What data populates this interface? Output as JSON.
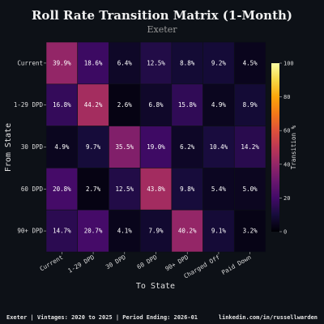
{
  "chart_data": {
    "type": "heatmap",
    "title": "Roll Rate Transition Matrix (1-Month)",
    "subtitle": "Exeter",
    "xlabel": "To State",
    "ylabel": "From State",
    "x_categories": [
      "Current",
      "1-29 DPD",
      "30 DPD",
      "60 DPD",
      "90+ DPD",
      "Charged Off",
      "Paid Down"
    ],
    "y_categories": [
      "Current",
      "1-29 DPD",
      "30 DPD",
      "60 DPD",
      "90+ DPD"
    ],
    "values": [
      [
        39.9,
        18.6,
        6.4,
        12.5,
        8.8,
        9.2,
        4.5
      ],
      [
        16.8,
        44.2,
        2.6,
        6.8,
        15.8,
        4.9,
        8.9
      ],
      [
        4.9,
        9.7,
        35.5,
        19.0,
        6.2,
        10.4,
        14.2
      ],
      [
        20.8,
        2.7,
        12.5,
        43.8,
        9.8,
        5.4,
        5.0
      ],
      [
        14.7,
        20.7,
        4.1,
        7.9,
        40.2,
        9.1,
        3.2
      ]
    ],
    "value_suffix": "%",
    "colorbar": {
      "label": "Transition %",
      "range": [
        0,
        100
      ],
      "ticks": [
        0,
        20,
        40,
        60,
        80,
        100
      ],
      "colormap": "inferno"
    }
  },
  "footer": {
    "left": "Exeter | Vintages: 2020 to 2025 | Period Ending: 2026-01",
    "right": "linkedin.com/in/russellwarden"
  },
  "colors": {
    "background": "#0d1117",
    "grid_line": "#0d1117"
  }
}
